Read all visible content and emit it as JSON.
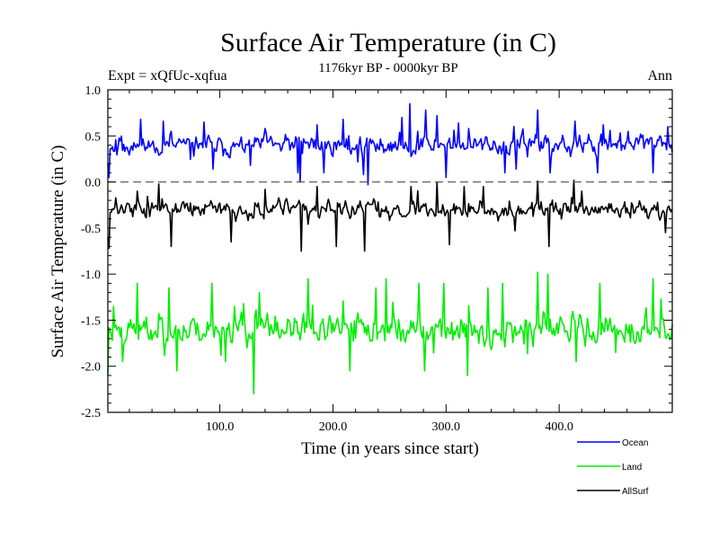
{
  "chart_data": {
    "type": "line",
    "title": "Surface Air Temperature (in C)",
    "subtitle": "1176kyr BP - 0000kyr BP",
    "left_label": "Expt = xQfUc-xqfua",
    "right_label": "Ann",
    "xlabel": "Time (in years since start)",
    "ylabel": "Surface Air Temperature (in C)",
    "xlim": [
      1,
      500
    ],
    "ylim": [
      -2.5,
      1.0
    ],
    "x_ticks": [
      100,
      200,
      300,
      400
    ],
    "x_tick_labels": [
      "100.0",
      "200.0",
      "300.0",
      "400.0"
    ],
    "y_ticks": [
      1.0,
      0.5,
      0.0,
      -0.5,
      -1.0,
      -1.5,
      -2.0,
      -2.5
    ],
    "y_tick_labels": [
      "1.0",
      "0.5",
      "0.0",
      "-0.5",
      "-1.0",
      "-1.5",
      "-2.0",
      "-2.5"
    ],
    "reference_line": {
      "y": 0.0,
      "style": "dashed"
    },
    "x_step": 1,
    "series": [
      {
        "name": "Ocean",
        "color": "#0000ff",
        "mean": 0.4,
        "amp": 0.12,
        "seed": 11,
        "features": [
          [
            1,
            0.2
          ],
          [
            2,
            0.05
          ],
          [
            30,
            0.68
          ],
          [
            50,
            0.66
          ],
          [
            86,
            0.65
          ],
          [
            94,
            0.14
          ],
          [
            127,
            0.18
          ],
          [
            140,
            0.58
          ],
          [
            169,
            0.1
          ],
          [
            171,
            0.0
          ],
          [
            186,
            0.62
          ],
          [
            192,
            0.1
          ],
          [
            209,
            0.68
          ],
          [
            227,
            0.08
          ],
          [
            231,
            -0.03
          ],
          [
            261,
            0.7
          ],
          [
            268,
            0.85
          ],
          [
            275,
            0.55
          ],
          [
            282,
            0.78
          ],
          [
            292,
            0.72
          ],
          [
            300,
            0.05
          ],
          [
            311,
            0.64
          ],
          [
            352,
            0.1
          ],
          [
            362,
            0.14
          ],
          [
            381,
            0.78
          ],
          [
            392,
            0.1
          ],
          [
            414,
            0.66
          ],
          [
            434,
            0.1
          ],
          [
            439,
            0.62
          ],
          [
            483,
            0.1
          ],
          [
            496,
            0.6
          ]
        ]
      },
      {
        "name": "Land",
        "color": "#00ee00",
        "mean": -1.6,
        "amp": 0.18,
        "seed": 23,
        "features": [
          [
            1,
            -2.1
          ],
          [
            6,
            -1.35
          ],
          [
            14,
            -1.95
          ],
          [
            27,
            -1.1
          ],
          [
            55,
            -1.15
          ],
          [
            62,
            -2.05
          ],
          [
            93,
            -1.1
          ],
          [
            105,
            -1.95
          ],
          [
            130,
            -2.3
          ],
          [
            135,
            -1.2
          ],
          [
            178,
            -1.05
          ],
          [
            215,
            -2.05
          ],
          [
            238,
            -1.15
          ],
          [
            247,
            -1.05
          ],
          [
            276,
            -1.1
          ],
          [
            281,
            -2.05
          ],
          [
            298,
            -1.1
          ],
          [
            319,
            -2.1
          ],
          [
            337,
            -1.15
          ],
          [
            350,
            -1.1
          ],
          [
            381,
            -0.98
          ],
          [
            390,
            -1.0
          ],
          [
            415,
            -1.95
          ],
          [
            436,
            -1.1
          ],
          [
            450,
            -1.85
          ],
          [
            483,
            -1.05
          ],
          [
            496,
            -1.65
          ]
        ]
      },
      {
        "name": "AllSurf",
        "color": "#000000",
        "mean": -0.3,
        "amp": 0.1,
        "seed": 37,
        "features": [
          [
            1,
            -0.6
          ],
          [
            2,
            -0.72
          ],
          [
            27,
            -0.1
          ],
          [
            46,
            -0.02
          ],
          [
            57,
            -0.7
          ],
          [
            110,
            -0.65
          ],
          [
            140,
            -0.08
          ],
          [
            172,
            -0.75
          ],
          [
            186,
            -0.05
          ],
          [
            203,
            -0.7
          ],
          [
            228,
            -0.75
          ],
          [
            269,
            -0.05
          ],
          [
            292,
            0.0
          ],
          [
            303,
            -0.68
          ],
          [
            316,
            -0.05
          ],
          [
            333,
            -0.05
          ],
          [
            381,
            0.01
          ],
          [
            391,
            -0.7
          ],
          [
            413,
            0.02
          ],
          [
            420,
            -0.1
          ],
          [
            494,
            -0.55
          ]
        ]
      }
    ],
    "legend": {
      "placement": "bottom-right",
      "entries": [
        {
          "label": "Ocean",
          "color": "#0000ff"
        },
        {
          "label": "Land",
          "color": "#00ee00"
        },
        {
          "label": "AllSurf",
          "color": "#000000"
        }
      ]
    }
  }
}
